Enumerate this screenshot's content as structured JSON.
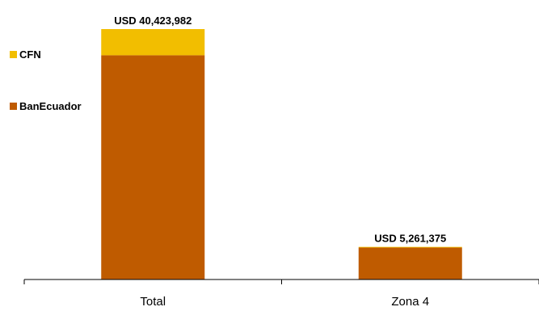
{
  "chart_data": {
    "type": "bar",
    "stacked": true,
    "categories": [
      "Total",
      "Zona 4"
    ],
    "series": [
      {
        "name": "BanEcuador",
        "color": "#BF5B00",
        "values": [
          36200000,
          5150000
        ]
      },
      {
        "name": "CFN",
        "color": "#F2BE00",
        "values": [
          4223982,
          111375
        ]
      }
    ],
    "total_labels": [
      "USD 40,423,982",
      "USD 5,261,375"
    ],
    "ylim": [
      0,
      40423982
    ],
    "grid": false,
    "legend_position": "left"
  }
}
